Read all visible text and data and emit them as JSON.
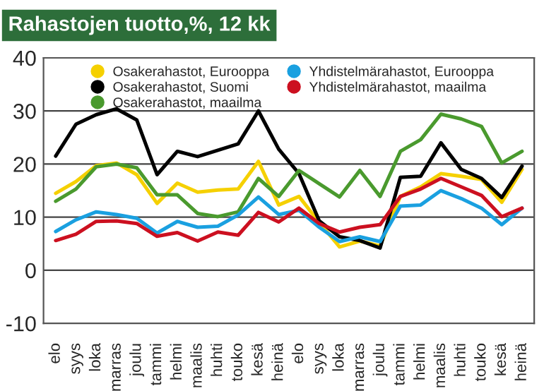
{
  "chart_data": {
    "type": "line",
    "title": "Rahastojen tuotto,%, 12 kk",
    "categories": [
      "elo",
      "syys",
      "loka",
      "marras",
      "joulu",
      "tammi",
      "helmi",
      "maalis",
      "huhti",
      "touko",
      "kesä",
      "heinä",
      "elo",
      "syys",
      "loka",
      "marras",
      "joulu",
      "tammi",
      "helmi",
      "maalis",
      "huhti",
      "touko",
      "kesä",
      "heinä"
    ],
    "series": [
      {
        "name": "Osakerahastot, Eurooppa",
        "color": "#f5d000",
        "values": [
          14.5,
          16.7,
          19.7,
          20.2,
          18,
          12.6,
          16.4,
          14.7,
          15.1,
          15.3,
          20.5,
          12.3,
          13.9,
          9,
          4.4,
          5.5,
          4.6,
          13.9,
          15.7,
          18.2,
          17.7,
          17.1,
          12.8,
          19
        ]
      },
      {
        "name": "Osakerahastot, Suomi",
        "color": "#000000",
        "values": [
          21.5,
          27.5,
          29.3,
          30.4,
          28.3,
          18,
          22.4,
          21.4,
          22.6,
          23.8,
          30,
          22.8,
          18.2,
          9.3,
          6.3,
          5.6,
          4.2,
          17.5,
          17.7,
          24,
          19,
          17.3,
          13.7,
          19.6
        ]
      },
      {
        "name": "Osakerahastot, maailma",
        "color": "#4a9a2e",
        "values": [
          13,
          15.3,
          19.5,
          20,
          19.3,
          14.2,
          14.2,
          10.7,
          10.1,
          11,
          17.3,
          13.9,
          18.8,
          16.3,
          13.8,
          18.8,
          13.9,
          22.4,
          24.6,
          29.4,
          28.5,
          27.1,
          20.2,
          22.4
        ]
      },
      {
        "name": "Yhdistelmärahastot, Eurooppa",
        "color": "#1aa0e0",
        "values": [
          7.3,
          9.5,
          11,
          10.5,
          9.8,
          7,
          9.2,
          8.1,
          8.3,
          10.4,
          13.8,
          10.5,
          11.3,
          8.1,
          5.4,
          6.3,
          5.4,
          12.1,
          12.3,
          15,
          13.5,
          11.7,
          8.6,
          11.7
        ]
      },
      {
        "name": "Yhdistelmärahastot, maailma",
        "color": "#cc1020",
        "values": [
          5.6,
          6.8,
          9.2,
          9.3,
          8.8,
          6.4,
          7.1,
          5.5,
          7.2,
          6.6,
          10.9,
          9.1,
          11.7,
          8.8,
          7.2,
          8.1,
          8.6,
          13.9,
          15.3,
          17.3,
          15.7,
          14.1,
          10.1,
          11.7
        ]
      }
    ],
    "ylim": [
      -10,
      40
    ],
    "yticks": [
      -10,
      0,
      10,
      20,
      30,
      40
    ],
    "grid": "y",
    "legend": "top",
    "marker": "none",
    "line_style": "solid"
  }
}
